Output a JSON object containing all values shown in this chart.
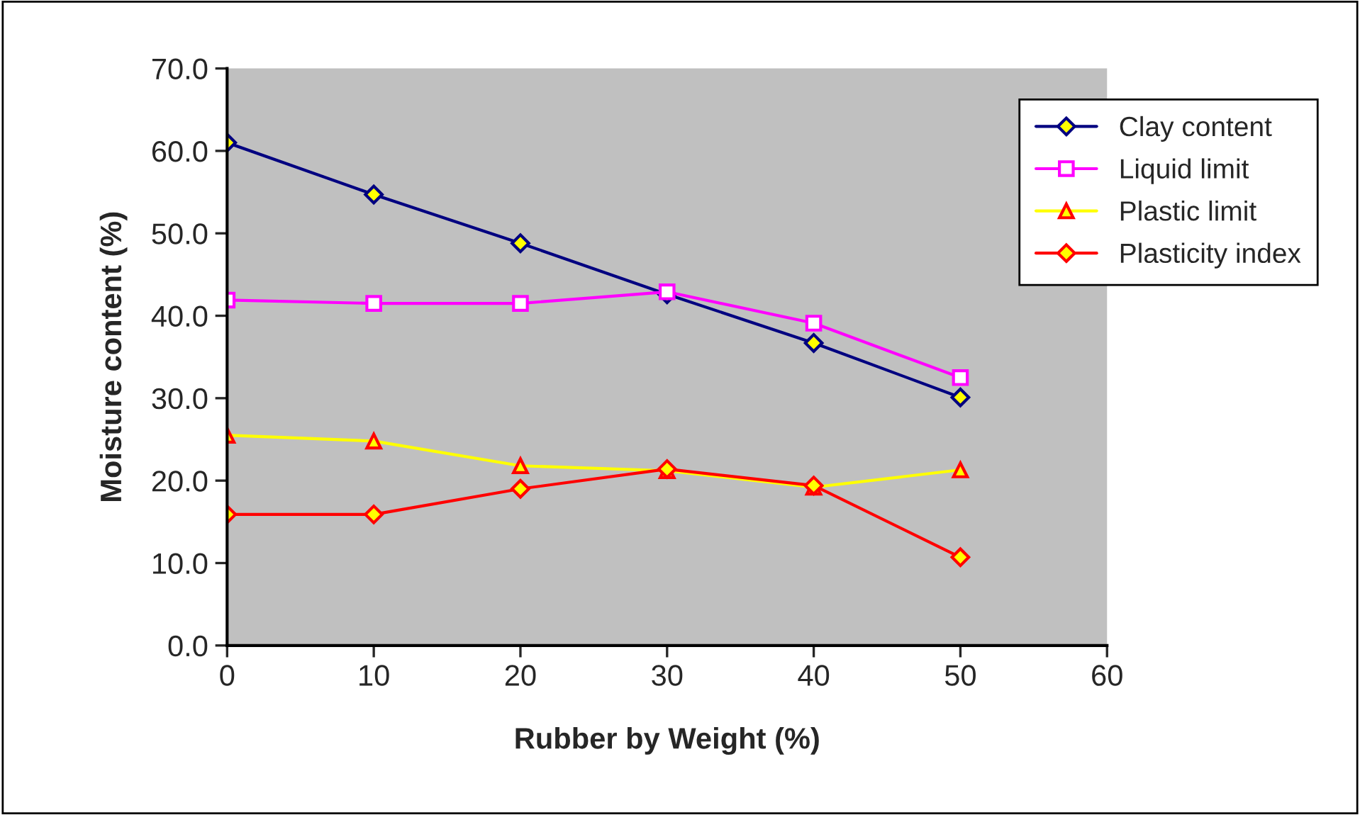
{
  "chart_data": {
    "type": "line",
    "xlabel": "Rubber by Weight (%)",
    "ylabel": "Moisture content (%)",
    "x": [
      0,
      10,
      20,
      30,
      40,
      50
    ],
    "series": [
      {
        "name": "Clay content",
        "color": "#000080",
        "marker": "diamond",
        "values": [
          61.0,
          54.7,
          48.8,
          42.6,
          36.7,
          30.1
        ]
      },
      {
        "name": "Liquid limit",
        "color": "#ff00ff",
        "marker": "square",
        "values": [
          41.9,
          41.5,
          41.5,
          42.9,
          39.1,
          32.5
        ]
      },
      {
        "name": "Plastic limit",
        "color": "#ffff00",
        "marker": "triangle",
        "values": [
          25.5,
          24.8,
          21.8,
          21.2,
          19.2,
          21.3
        ]
      },
      {
        "name": "Plasticity index",
        "color": "#ff0000",
        "marker": "diamond",
        "values": [
          15.9,
          15.9,
          19.0,
          21.4,
          19.4,
          10.7
        ]
      }
    ],
    "xlim": [
      0,
      60
    ],
    "xticks": [
      0,
      10,
      20,
      30,
      40,
      50,
      60
    ],
    "ylim": [
      0,
      70
    ],
    "yticks": [
      {
        "value": 0,
        "label": "0.0"
      },
      {
        "value": 10,
        "label": "10.0"
      },
      {
        "value": 20,
        "label": "20.0"
      },
      {
        "value": 30,
        "label": "30.0"
      },
      {
        "value": 40,
        "label": "40.0"
      },
      {
        "value": 50,
        "label": "50.0"
      },
      {
        "value": 60,
        "label": "60.0"
      },
      {
        "value": 70,
        "label": "70.0"
      }
    ],
    "grid": false,
    "legend": "top right",
    "line_style": "solid"
  }
}
